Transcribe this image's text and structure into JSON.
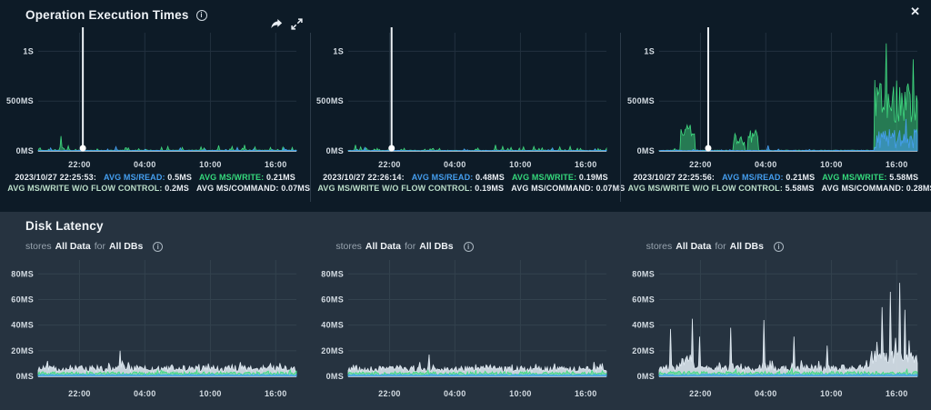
{
  "icons": {
    "close": "✕",
    "info": "i"
  },
  "colors": {
    "read": "#459ff0",
    "write": "#35d97c",
    "wofc": "#bcdfc9",
    "stat_text": "#e9eef3",
    "bg_top": "#0d1b27",
    "bg_bottom": "#263340",
    "divider": "#2c3b49",
    "pale": "#dfe9f1"
  },
  "op_section": {
    "title": "Operation Execution Times",
    "charts": [
      {
        "stats": {
          "timestamp": "2023/10/27 22:25:53:",
          "read_label": "AVG MS/READ:",
          "read_value": "0.5MS",
          "write_label": "AVG MS/WRITE:",
          "write_value": "0.21MS",
          "wofc_label": "AVG MS/WRITE W/O FLOW CONTROL:",
          "wofc_value": "0.2MS",
          "command_label": "AVG MS/COMMAND:",
          "command_value": "0.07MS"
        }
      },
      {
        "stats": {
          "timestamp": "2023/10/27 22:26:14:",
          "read_label": "AVG MS/READ:",
          "read_value": "0.48MS",
          "write_label": "AVG MS/WRITE:",
          "write_value": "0.19MS",
          "wofc_label": "AVG MS/WRITE W/O FLOW CONTROL:",
          "wofc_value": "0.19MS",
          "command_label": "AVG MS/COMMAND:",
          "command_value": "0.07MS"
        }
      },
      {
        "stats": {
          "timestamp": "2023/10/27 22:25:56:",
          "read_label": "AVG MS/READ:",
          "read_value": "0.21MS",
          "write_label": "AVG MS/WRITE:",
          "write_value": "5.58MS",
          "wofc_label": "AVG MS/WRITE W/O FLOW CONTROL:",
          "wofc_value": "5.58MS",
          "command_label": "AVG MS/COMMAND:",
          "command_value": "0.28MS"
        }
      }
    ]
  },
  "disk_section": {
    "title": "Disk Latency",
    "subtitle": {
      "prefix": "stores",
      "scope": "All Data",
      "connector": "for",
      "target": "All DBs"
    }
  },
  "chart_data": [
    {
      "id": "operation-execution-times-1",
      "type": "area",
      "ymax": 1150,
      "seed": 11,
      "grid": "#22313f",
      "axis": "#9fb0bc",
      "yticks": [
        {
          "v": 1000,
          "label": "1S"
        },
        {
          "v": 500,
          "label": "500MS"
        },
        {
          "v": 0,
          "label": "0MS"
        }
      ],
      "xticks": [
        {
          "f": 0.16,
          "label": "22:00"
        },
        {
          "f": 0.413,
          "label": "04:00"
        },
        {
          "f": 0.667,
          "label": "10:00"
        },
        {
          "f": 0.92,
          "label": "16:00"
        }
      ],
      "series": [
        {
          "name": "avg-ms-write",
          "color": "#3fd97f",
          "fill_opacity": 0.5,
          "base": 2,
          "noise": 7,
          "spike_prob": 0.1,
          "spike_scale": 30,
          "spikes": [
            {
              "x": 0.09,
              "v": 150
            },
            {
              "x": 0.115,
              "v": 50
            },
            {
              "x": 0.35,
              "v": 30
            },
            {
              "x": 0.5,
              "v": 45
            },
            {
              "x": 0.56,
              "v": 35
            },
            {
              "x": 0.63,
              "v": 40
            },
            {
              "x": 0.7,
              "v": 55
            },
            {
              "x": 0.75,
              "v": 45
            },
            {
              "x": 0.8,
              "v": 60
            },
            {
              "x": 0.84,
              "v": 40
            },
            {
              "x": 0.9,
              "v": 35
            }
          ]
        },
        {
          "name": "avg-ms-read",
          "color": "#459ff0",
          "fill_opacity": 0.55,
          "base": 1.5,
          "noise": 5,
          "spike_prob": 0.06,
          "spike_scale": 24,
          "spikes": [
            {
              "x": 0.05,
              "v": 30
            },
            {
              "x": 0.3,
              "v": 42
            },
            {
              "x": 0.55,
              "v": 30
            },
            {
              "x": 0.77,
              "v": 35
            },
            {
              "x": 0.95,
              "v": 30
            }
          ]
        }
      ],
      "marker_spike": {
        "x": 0.173,
        "clipped_above": 1150
      }
    },
    {
      "id": "operation-execution-times-2",
      "type": "area",
      "ymax": 1150,
      "seed": 23,
      "grid": "#22313f",
      "axis": "#9fb0bc",
      "yticks": [
        {
          "v": 1000,
          "label": "1S"
        },
        {
          "v": 500,
          "label": "500MS"
        },
        {
          "v": 0,
          "label": "0MS"
        }
      ],
      "xticks": [
        {
          "f": 0.16,
          "label": "22:00"
        },
        {
          "f": 0.413,
          "label": "04:00"
        },
        {
          "f": 0.667,
          "label": "10:00"
        },
        {
          "f": 0.92,
          "label": "16:00"
        }
      ],
      "series": [
        {
          "name": "avg-ms-write",
          "color": "#3fd97f",
          "fill_opacity": 0.5,
          "base": 2,
          "noise": 6,
          "spike_prob": 0.1,
          "spike_scale": 24,
          "spikes": [
            {
              "x": 0.03,
              "v": 60
            },
            {
              "x": 0.05,
              "v": 40
            },
            {
              "x": 0.07,
              "v": 30
            },
            {
              "x": 0.33,
              "v": 25
            },
            {
              "x": 0.5,
              "v": 28
            },
            {
              "x": 0.57,
              "v": 60
            },
            {
              "x": 0.6,
              "v": 45
            },
            {
              "x": 0.63,
              "v": 35
            },
            {
              "x": 0.68,
              "v": 40
            },
            {
              "x": 0.72,
              "v": 45
            },
            {
              "x": 0.75,
              "v": 30
            },
            {
              "x": 0.82,
              "v": 40
            },
            {
              "x": 0.86,
              "v": 45
            },
            {
              "x": 0.9,
              "v": 25
            }
          ]
        },
        {
          "name": "avg-ms-read",
          "color": "#459ff0",
          "fill_opacity": 0.55,
          "base": 1.5,
          "noise": 4,
          "spike_prob": 0.05,
          "spike_scale": 20,
          "spikes": [
            {
              "x": 0.065,
              "v": 35
            },
            {
              "x": 0.45,
              "v": 20
            },
            {
              "x": 0.79,
              "v": 30
            }
          ]
        }
      ],
      "marker_spike": {
        "x": 0.168,
        "clipped_above": 1150
      }
    },
    {
      "id": "operation-execution-times-3",
      "type": "area",
      "ymax": 1150,
      "seed": 37,
      "grid": "#22313f",
      "axis": "#9fb0bc",
      "yticks": [
        {
          "v": 1000,
          "label": "1S"
        },
        {
          "v": 500,
          "label": "500MS"
        },
        {
          "v": 0,
          "label": "0MS"
        }
      ],
      "xticks": [
        {
          "f": 0.16,
          "label": "22:00"
        },
        {
          "f": 0.413,
          "label": "04:00"
        },
        {
          "f": 0.667,
          "label": "10:00"
        },
        {
          "f": 0.92,
          "label": "16:00"
        }
      ],
      "series": [
        {
          "name": "avg-ms-write",
          "color": "#3fd97f",
          "fill_opacity": 0.5,
          "base": 2,
          "noise": 6,
          "spike_prob": 0.05,
          "spike_scale": 20,
          "regions": [
            {
              "x0": 0.085,
              "x1": 0.135,
              "min": 150,
              "max": 300
            },
            {
              "x0": 0.29,
              "x1": 0.33,
              "min": 60,
              "max": 190
            },
            {
              "x0": 0.345,
              "x1": 0.38,
              "min": 80,
              "max": 210
            },
            {
              "x0": 0.834,
              "x1": 1.0,
              "min": 280,
              "max": 720
            }
          ],
          "spikes": [
            {
              "x": 0.878,
              "v": 1080
            },
            {
              "x": 0.93,
              "v": 640
            },
            {
              "x": 0.985,
              "v": 920
            }
          ]
        },
        {
          "name": "avg-ms-read",
          "color": "#459ff0",
          "fill_opacity": 0.6,
          "base": 1.5,
          "noise": 5,
          "spike_prob": 0.05,
          "spike_scale": 16,
          "regions": [
            {
              "x0": 0.834,
              "x1": 1.0,
              "min": 20,
              "max": 230
            }
          ],
          "spikes": [
            {
              "x": 0.42,
              "v": 55
            },
            {
              "x": 0.955,
              "v": 320
            },
            {
              "x": 0.99,
              "v": 150
            }
          ]
        }
      ],
      "marker_spike": {
        "x": 0.19,
        "clipped_above": 1150
      }
    },
    {
      "id": "disk-latency-1",
      "type": "area",
      "ymax": 88,
      "seed": 51,
      "grid": "#33424e",
      "axis": "#aeb9c4",
      "yticks": [
        {
          "v": 80,
          "label": "80MS"
        },
        {
          "v": 60,
          "label": "60MS"
        },
        {
          "v": 40,
          "label": "40MS"
        },
        {
          "v": 20,
          "label": "20MS"
        },
        {
          "v": 0,
          "label": "0MS"
        }
      ],
      "xticks": [
        {
          "f": 0.16,
          "label": "22:00"
        },
        {
          "f": 0.413,
          "label": "04:00"
        },
        {
          "f": 0.667,
          "label": "10:00"
        },
        {
          "f": 0.92,
          "label": "16:00"
        }
      ],
      "series": [
        {
          "name": "disk-latency-pale",
          "color": "#dfe9f1",
          "fill_opacity": 0.88,
          "base": 3.5,
          "noise": 5,
          "spike_prob": 0.12,
          "spike_scale": 4,
          "spikes": [
            {
              "x": 0.035,
              "v": 12
            },
            {
              "x": 0.318,
              "v": 20
            },
            {
              "x": 0.35,
              "v": 11
            },
            {
              "x": 0.52,
              "v": 9
            },
            {
              "x": 0.66,
              "v": 10
            },
            {
              "x": 0.75,
              "v": 9
            },
            {
              "x": 0.9,
              "v": 10
            }
          ]
        },
        {
          "name": "disk-latency-green",
          "color": "#3fd97f",
          "fill_opacity": 0.55,
          "base": 1,
          "noise": 2.6,
          "spike_prob": 0.08,
          "spike_scale": 2,
          "spikes": []
        },
        {
          "name": "disk-latency-blue",
          "color": "#459ff0",
          "fill_opacity": 0.6,
          "base": 0.5,
          "noise": 1.2,
          "spikes": []
        }
      ]
    },
    {
      "id": "disk-latency-2",
      "type": "area",
      "ymax": 88,
      "seed": 67,
      "grid": "#33424e",
      "axis": "#aeb9c4",
      "yticks": [
        {
          "v": 80,
          "label": "80MS"
        },
        {
          "v": 60,
          "label": "60MS"
        },
        {
          "v": 40,
          "label": "40MS"
        },
        {
          "v": 20,
          "label": "20MS"
        },
        {
          "v": 0,
          "label": "0MS"
        }
      ],
      "xticks": [
        {
          "f": 0.16,
          "label": "22:00"
        },
        {
          "f": 0.413,
          "label": "04:00"
        },
        {
          "f": 0.667,
          "label": "10:00"
        },
        {
          "f": 0.92,
          "label": "16:00"
        }
      ],
      "series": [
        {
          "name": "disk-latency-pale",
          "color": "#dfe9f1",
          "fill_opacity": 0.88,
          "base": 3.5,
          "noise": 4.5,
          "spike_prob": 0.12,
          "spike_scale": 4,
          "spikes": [
            {
              "x": 0.314,
              "v": 17
            },
            {
              "x": 0.55,
              "v": 9
            },
            {
              "x": 0.8,
              "v": 10
            }
          ]
        },
        {
          "name": "disk-latency-green",
          "color": "#3fd97f",
          "fill_opacity": 0.55,
          "base": 1,
          "noise": 2.6,
          "spike_prob": 0.08,
          "spike_scale": 2,
          "spikes": []
        },
        {
          "name": "disk-latency-blue",
          "color": "#459ff0",
          "fill_opacity": 0.6,
          "base": 0.5,
          "noise": 1.2,
          "spikes": []
        }
      ]
    },
    {
      "id": "disk-latency-3",
      "type": "area",
      "ymax": 88,
      "seed": 83,
      "grid": "#33424e",
      "axis": "#aeb9c4",
      "yticks": [
        {
          "v": 80,
          "label": "80MS"
        },
        {
          "v": 60,
          "label": "60MS"
        },
        {
          "v": 40,
          "label": "40MS"
        },
        {
          "v": 20,
          "label": "20MS"
        },
        {
          "v": 0,
          "label": "0MS"
        }
      ],
      "xticks": [
        {
          "f": 0.16,
          "label": "22:00"
        },
        {
          "f": 0.413,
          "label": "04:00"
        },
        {
          "f": 0.667,
          "label": "10:00"
        },
        {
          "f": 0.92,
          "label": "16:00"
        }
      ],
      "series": [
        {
          "name": "disk-latency-pale",
          "color": "#dfe9f1",
          "fill_opacity": 0.88,
          "base": 3.5,
          "noise": 5.5,
          "spike_prob": 0.14,
          "spike_scale": 5,
          "regions": [
            {
              "x0": 0.08,
              "x1": 0.125,
              "min": 7,
              "max": 17
            },
            {
              "x0": 0.82,
              "x1": 1.0,
              "min": 7,
              "max": 20
            }
          ],
          "spikes": [
            {
              "x": 0.046,
              "v": 37
            },
            {
              "x": 0.127,
              "v": 45
            },
            {
              "x": 0.156,
              "v": 31
            },
            {
              "x": 0.279,
              "v": 38
            },
            {
              "x": 0.406,
              "v": 44
            },
            {
              "x": 0.523,
              "v": 31
            },
            {
              "x": 0.65,
              "v": 24
            },
            {
              "x": 0.845,
              "v": 27
            },
            {
              "x": 0.862,
              "v": 54
            },
            {
              "x": 0.894,
              "v": 66
            },
            {
              "x": 0.915,
              "v": 30
            },
            {
              "x": 0.933,
              "v": 73
            },
            {
              "x": 0.95,
              "v": 52
            },
            {
              "x": 0.968,
              "v": 28
            },
            {
              "x": 0.99,
              "v": 15
            }
          ]
        },
        {
          "name": "disk-latency-green",
          "color": "#3fd97f",
          "fill_opacity": 0.55,
          "base": 1,
          "noise": 3,
          "spike_prob": 0.08,
          "spike_scale": 2.5,
          "spikes": []
        },
        {
          "name": "disk-latency-blue",
          "color": "#459ff0",
          "fill_opacity": 0.6,
          "base": 0.5,
          "noise": 1.4,
          "spikes": []
        }
      ]
    }
  ]
}
